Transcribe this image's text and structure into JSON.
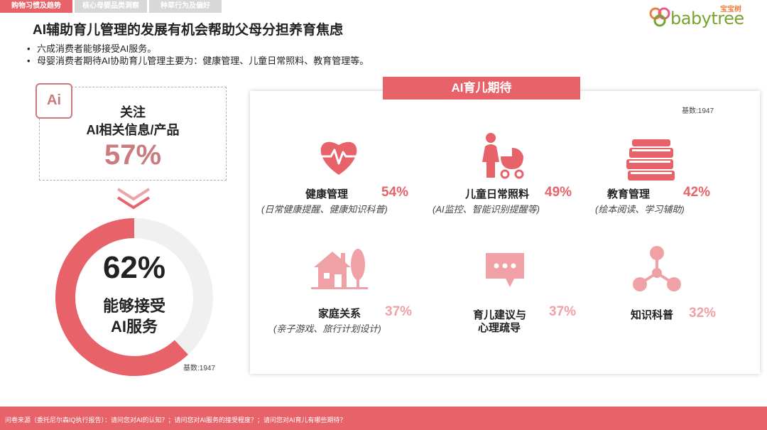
{
  "tabs": [
    {
      "label": "购物习惯及趋势",
      "active": true
    },
    {
      "label": "核心母婴品类洞察",
      "active": false
    },
    {
      "label": "种草行为及偏好",
      "active": false
    }
  ],
  "logo": {
    "cn": "宝宝树",
    "en": "babytree"
  },
  "title": "AI辅助育儿管理的发展有机会帮助父母分担养育焦虑",
  "bullets": [
    "六成消费者能够接受AI服务。",
    "母婴消费者期待AI协助育儿管理主要为：健康管理、儿童日常照料、教育管理等。"
  ],
  "focus": {
    "badge": "Ai",
    "line1": "关注",
    "line2": "AI相关信息/产品",
    "percent": "57%"
  },
  "accept": {
    "percent": "62%",
    "line1": "能够接受",
    "line2": "AI服务",
    "base": "基数:1947"
  },
  "expect": {
    "title": "AI育儿期待",
    "base": "基数:1947"
  },
  "items": [
    {
      "icon": "heart-pulse-icon",
      "name": "健康管理",
      "percent": "54%",
      "desc": "(日常健康提醒、健康知识科普)"
    },
    {
      "icon": "mother-stroller-icon",
      "name": "儿童日常照料",
      "percent": "49%",
      "desc": "(AI监控、智能识别提醒等)"
    },
    {
      "icon": "books-icon",
      "name": "教育管理",
      "percent": "42%",
      "desc": "(绘本阅读、学习辅助)"
    },
    {
      "icon": "house-tree-icon",
      "name": "家庭关系",
      "percent": "37%",
      "desc": "(亲子游戏、旅行计划设计)"
    },
    {
      "icon": "chat-bubble-icon",
      "name1": "育儿建议与",
      "name2": "心理疏导",
      "percent": "37%"
    },
    {
      "icon": "molecule-icon",
      "name": "知识科普",
      "percent": "32%"
    }
  ],
  "footer": "问卷来源（委托尼尔森IQ执行报告）：请问您对AI的认知？；请问您对AI服务的接受程度？；请问您对AI育儿有哪些期待？",
  "colors": {
    "accent": "#e8626a",
    "muted": "#c97b7e",
    "light": "#f0a1a5"
  },
  "chart_data": {
    "type": "bar",
    "title": "AI育儿期待",
    "categories": [
      "健康管理",
      "儿童日常照料",
      "教育管理",
      "家庭关系",
      "育儿建议与心理疏导",
      "知识科普"
    ],
    "values": [
      54,
      49,
      42,
      37,
      37,
      32
    ],
    "unit": "%",
    "summary": [
      {
        "label": "关注AI相关信息/产品",
        "value": 57
      },
      {
        "label": "能够接受AI服务",
        "value": 62
      }
    ],
    "base": 1947
  }
}
